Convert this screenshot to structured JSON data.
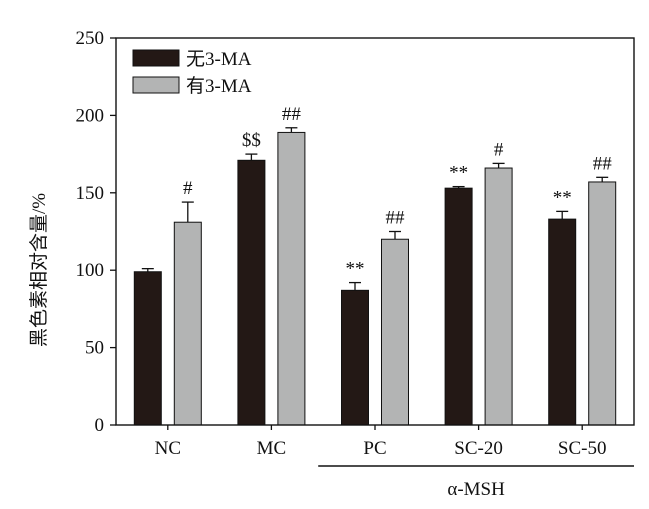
{
  "chart_data": {
    "type": "bar",
    "title": "",
    "xlabel": "",
    "ylabel": "黑色素相对含量/%",
    "ylim": [
      0,
      250
    ],
    "yticks": [
      0,
      50,
      100,
      150,
      200,
      250
    ],
    "categories": [
      "NC",
      "MC",
      "PC",
      "SC-20",
      "SC-50"
    ],
    "series": [
      {
        "name": "无3-MA",
        "color": "#231815",
        "values": [
          99,
          171,
          87,
          153,
          133
        ],
        "errors": [
          2,
          4,
          5,
          1,
          5
        ],
        "annotations": [
          "",
          "$$",
          "**",
          "**",
          "**"
        ]
      },
      {
        "name": "有3-MA",
        "color": "#b3b4b4",
        "values": [
          131,
          189,
          120,
          166,
          157
        ],
        "errors": [
          13,
          3,
          5,
          3,
          3
        ],
        "annotations": [
          "#",
          "##",
          "##",
          "#",
          "##"
        ]
      }
    ],
    "group_label": {
      "text": "α-MSH",
      "spans_categories": [
        "PC",
        "SC-20",
        "SC-50"
      ]
    },
    "legend": {
      "position": "top-left"
    },
    "grid": false
  }
}
